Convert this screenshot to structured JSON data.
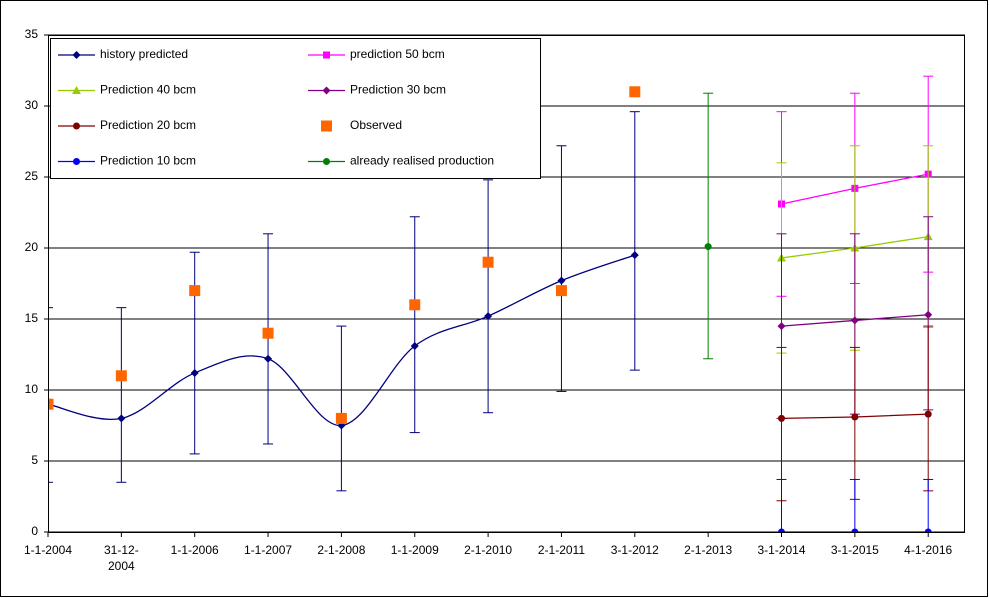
{
  "chart_data": {
    "type": "line",
    "categories": [
      "1-1-2004",
      "31-12-2004",
      "1-1-2006",
      "1-1-2007",
      "2-1-2008",
      "1-1-2009",
      "2-1-2010",
      "2-1-2011",
      "3-1-2012",
      "2-1-2013",
      "3-1-2014",
      "3-1-2015",
      "4-1-2016"
    ],
    "ylim": [
      0,
      35
    ],
    "yticks": [
      0,
      5,
      10,
      15,
      20,
      25,
      30,
      35
    ],
    "grid": true,
    "series": [
      {
        "name": "history predicted",
        "color": "#000080",
        "marker": "diamond",
        "line": true,
        "smooth": true,
        "values": [
          9,
          8,
          11.2,
          12.2,
          7.5,
          13.1,
          15.2,
          17.7,
          19.5,
          null,
          null,
          null,
          null
        ],
        "error_low": [
          3.5,
          3.5,
          5.5,
          6.2,
          2.9,
          7,
          8.4,
          9.9,
          11.4,
          null,
          null,
          null,
          null
        ],
        "error_high": [
          15.8,
          15.8,
          19.7,
          21,
          14.5,
          22.2,
          24.8,
          27.2,
          29.6,
          null,
          null,
          null,
          null
        ]
      },
      {
        "name": "prediction 50 bcm",
        "color": "#ff00ff",
        "marker": "square",
        "line": true,
        "values": [
          null,
          null,
          null,
          null,
          null,
          null,
          null,
          null,
          null,
          null,
          23.1,
          24.2,
          25.2
        ],
        "error_low": [
          null,
          null,
          null,
          null,
          null,
          null,
          null,
          null,
          null,
          null,
          16.6,
          17.5,
          18.3
        ],
        "error_high": [
          null,
          null,
          null,
          null,
          null,
          null,
          null,
          null,
          null,
          null,
          29.6,
          30.9,
          32.1
        ]
      },
      {
        "name": "Prediction 40 bcm",
        "color": "#99cc00",
        "marker": "triangle",
        "line": true,
        "values": [
          null,
          null,
          null,
          null,
          null,
          null,
          null,
          null,
          null,
          null,
          19.3,
          20,
          20.8
        ],
        "error_low": [
          null,
          null,
          null,
          null,
          null,
          null,
          null,
          null,
          null,
          null,
          12.6,
          12.8,
          14.4
        ],
        "error_high": [
          null,
          null,
          null,
          null,
          null,
          null,
          null,
          null,
          null,
          null,
          26,
          27.2,
          27.2
        ]
      },
      {
        "name": "Prediction 30 bcm",
        "color": "#800080",
        "marker": "diamond",
        "line": true,
        "values": [
          null,
          null,
          null,
          null,
          null,
          null,
          null,
          null,
          null,
          null,
          14.5,
          14.9,
          15.3
        ],
        "error_low": [
          null,
          null,
          null,
          null,
          null,
          null,
          null,
          null,
          null,
          null,
          8,
          8.3,
          8.6
        ],
        "error_high": [
          null,
          null,
          null,
          null,
          null,
          null,
          null,
          null,
          null,
          null,
          21,
          21,
          22.2
        ]
      },
      {
        "name": "Prediction 20 bcm",
        "color": "#800000",
        "marker": "circle",
        "line": true,
        "values": [
          null,
          null,
          null,
          null,
          null,
          null,
          null,
          null,
          null,
          null,
          8,
          8.1,
          8.3
        ],
        "error_low": [
          null,
          null,
          null,
          null,
          null,
          null,
          null,
          null,
          null,
          null,
          2.2,
          2.3,
          2.9
        ],
        "error_high": [
          null,
          null,
          null,
          null,
          null,
          null,
          null,
          null,
          null,
          null,
          13,
          13,
          14.5
        ]
      },
      {
        "name": "Observed",
        "color": "#ff6600",
        "marker": "bigsquare",
        "line": false,
        "values": [
          9,
          11,
          17,
          14,
          8,
          16,
          19,
          17,
          31,
          null,
          null,
          null,
          null
        ]
      },
      {
        "name": "Prediction 10 bcm",
        "color": "#0000ff",
        "marker": "circle",
        "line": true,
        "values": [
          null,
          null,
          null,
          null,
          null,
          null,
          null,
          null,
          null,
          null,
          0,
          0,
          0
        ],
        "error_low": [
          null,
          null,
          null,
          null,
          null,
          null,
          null,
          null,
          null,
          null,
          -3.7,
          -3.7,
          -3.7
        ],
        "error_high": [
          null,
          null,
          null,
          null,
          null,
          null,
          null,
          null,
          null,
          null,
          3.7,
          3.7,
          3.7
        ]
      },
      {
        "name": "already realised production",
        "color": "#008000",
        "marker": "circle",
        "line": true,
        "values": [
          null,
          null,
          null,
          null,
          null,
          null,
          null,
          null,
          null,
          20.1,
          null,
          null,
          null
        ],
        "error_low": [
          null,
          null,
          null,
          null,
          null,
          null,
          null,
          null,
          null,
          12.2,
          null,
          null,
          null
        ],
        "error_high": [
          null,
          null,
          null,
          null,
          null,
          null,
          null,
          null,
          null,
          30.9,
          null,
          null,
          null
        ]
      }
    ]
  }
}
